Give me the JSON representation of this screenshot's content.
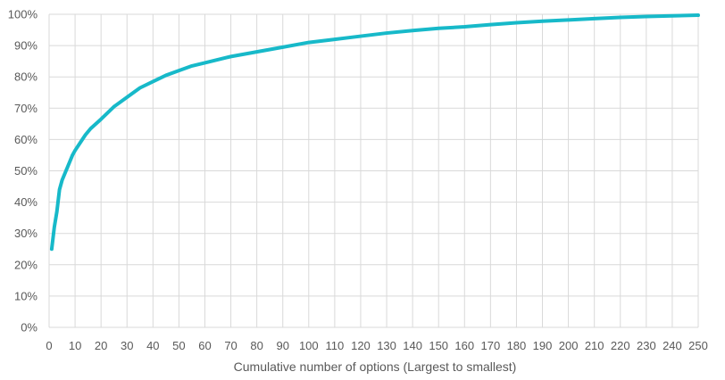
{
  "chart_data": {
    "type": "line",
    "title": "",
    "xlabel": "Cumulative number of options (Largest to smallest)",
    "ylabel": "",
    "xlim": [
      0,
      250
    ],
    "ylim": [
      0,
      100
    ],
    "grid": true,
    "legend": "none",
    "color": "#17b9c9",
    "x_ticks": [
      "0",
      "10",
      "20",
      "30",
      "40",
      "50",
      "60",
      "70",
      "80",
      "90",
      "100",
      "110",
      "120",
      "130",
      "140",
      "150",
      "160",
      "170",
      "180",
      "190",
      "200",
      "210",
      "220",
      "230",
      "240",
      "250"
    ],
    "y_ticks": [
      "0%",
      "10%",
      "20%",
      "30%",
      "40%",
      "50%",
      "60%",
      "70%",
      "80%",
      "90%",
      "100%"
    ],
    "series": [
      {
        "x": [
          1,
          2,
          3,
          4,
          5,
          6,
          7,
          8,
          9,
          10,
          12,
          14,
          16,
          18,
          20,
          25,
          30,
          35,
          40,
          45,
          50,
          55,
          60,
          70,
          80,
          90,
          100,
          110,
          120,
          130,
          140,
          150,
          160,
          170,
          180,
          190,
          200,
          210,
          220,
          230,
          240,
          250
        ],
        "y": [
          25,
          32,
          37,
          44,
          47,
          49,
          51,
          53,
          55,
          56.5,
          59,
          61.5,
          63.5,
          65,
          66.5,
          70.5,
          73.5,
          76.5,
          78.5,
          80.5,
          82,
          83.5,
          84.5,
          86.5,
          88,
          89.5,
          91,
          92,
          93,
          94,
          94.8,
          95.5,
          96,
          96.7,
          97.3,
          97.8,
          98.2,
          98.6,
          99,
          99.3,
          99.5,
          99.7
        ]
      }
    ]
  }
}
